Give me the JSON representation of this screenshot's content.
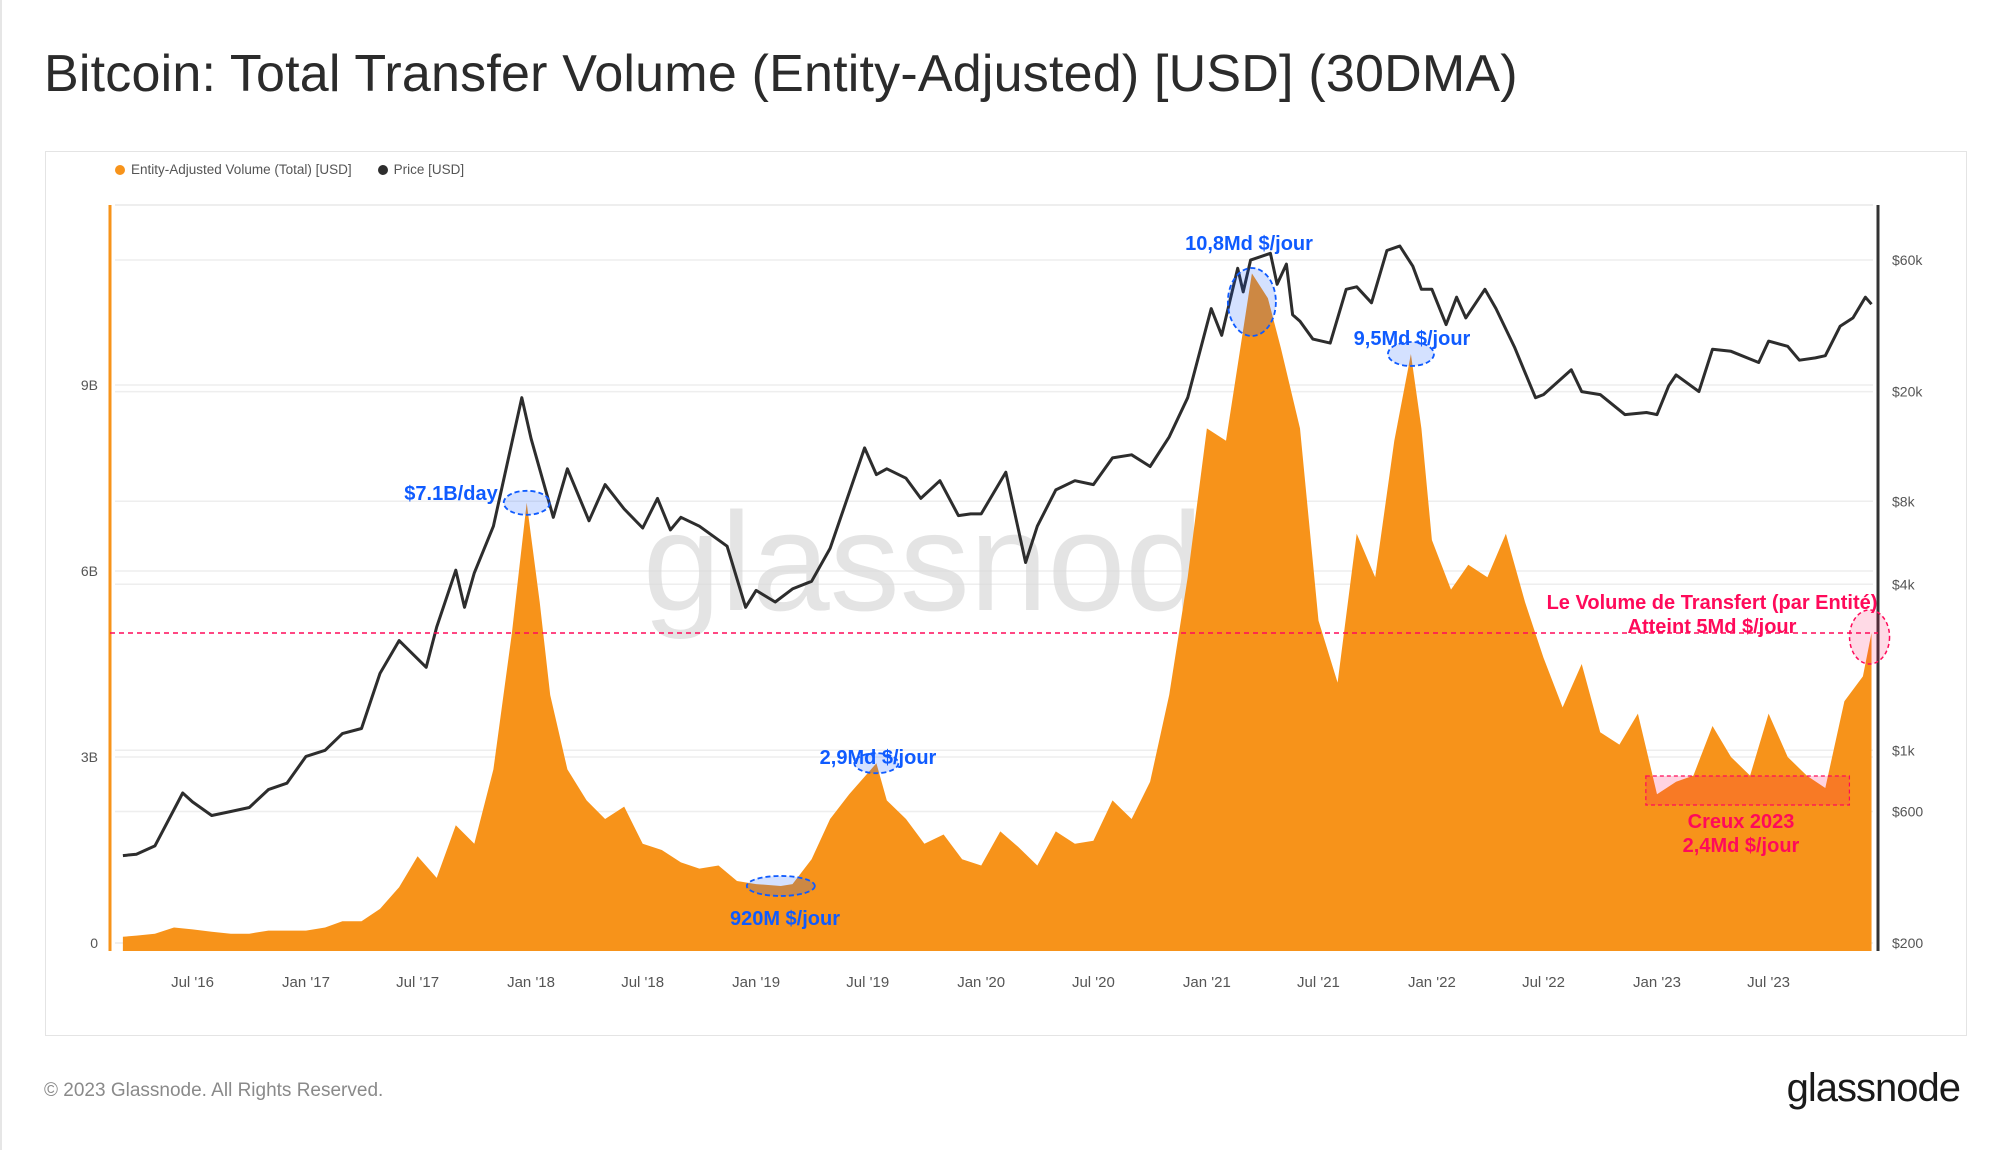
{
  "title": "Bitcoin: Total Transfer Volume (Entity-Adjusted) [USD] (30DMA)",
  "footer": "© 2023 Glassnode. All Rights Reserved.",
  "logo": "glassnode",
  "watermark": "glassnode",
  "colors": {
    "volume": "#f7931a",
    "price": "#2d2d2d",
    "annotation_blue": "#0f5bff",
    "annotation_pink": "#ff0a5a"
  },
  "chart_data": {
    "type": "area",
    "title": "Bitcoin: Total Transfer Volume (Entity-Adjusted) [USD] (30DMA)",
    "legend": {
      "placement": "top-left",
      "entries": [
        "Entity-Adjusted Volume (Total) [USD]",
        "Price [USD]"
      ]
    },
    "grid": true,
    "x_ticks": [
      "Jul '16",
      "Jan '17",
      "Jul '17",
      "Jan '18",
      "Jul '18",
      "Jan '19",
      "Jul '19",
      "Jan '20",
      "Jul '20",
      "Jan '21",
      "Jul '21",
      "Jan '22",
      "Jul '22",
      "Jan '23",
      "Jul '23"
    ],
    "x_tick_dates": [
      "2016-07-01",
      "2017-01-01",
      "2017-07-01",
      "2018-01-01",
      "2018-07-01",
      "2019-01-01",
      "2019-07-01",
      "2020-01-01",
      "2020-07-01",
      "2021-01-01",
      "2021-07-01",
      "2022-01-01",
      "2022-07-01",
      "2023-01-01",
      "2023-07-01"
    ],
    "y_left": {
      "scale": "linear",
      "unit": "USD",
      "ticks": [
        "0",
        "3B",
        "6B",
        "9B"
      ],
      "tick_values": [
        0,
        3,
        6,
        9
      ],
      "range": [
        0,
        11.5
      ]
    },
    "y_right": {
      "scale": "log",
      "unit": "USD",
      "ticks": [
        "$200",
        "$600",
        "$1k",
        "$4k",
        "$8k",
        "$20k",
        "$60k"
      ],
      "tick_values": [
        200,
        600,
        1000,
        4000,
        8000,
        20000,
        60000
      ]
    },
    "series": [
      {
        "name": "Entity-Adjusted Volume (Total) [USD]",
        "type": "area",
        "axis": "left",
        "unit": "billion USD",
        "points": [
          [
            "2016-03-10",
            0.1
          ],
          [
            "2016-04-01",
            0.12
          ],
          [
            "2016-05-01",
            0.15
          ],
          [
            "2016-06-01",
            0.25
          ],
          [
            "2016-07-01",
            0.22
          ],
          [
            "2016-08-01",
            0.18
          ],
          [
            "2016-09-01",
            0.15
          ],
          [
            "2016-10-01",
            0.15
          ],
          [
            "2016-11-01",
            0.2
          ],
          [
            "2016-12-01",
            0.2
          ],
          [
            "2017-01-01",
            0.2
          ],
          [
            "2017-02-01",
            0.25
          ],
          [
            "2017-03-01",
            0.35
          ],
          [
            "2017-04-01",
            0.35
          ],
          [
            "2017-05-01",
            0.55
          ],
          [
            "2017-06-01",
            0.9
          ],
          [
            "2017-07-01",
            1.4
          ],
          [
            "2017-08-01",
            1.05
          ],
          [
            "2017-09-01",
            1.9
          ],
          [
            "2017-10-01",
            1.6
          ],
          [
            "2017-11-01",
            2.8
          ],
          [
            "2017-12-01",
            5.0
          ],
          [
            "2017-12-25",
            7.1
          ],
          [
            "2018-01-15",
            5.5
          ],
          [
            "2018-02-01",
            4.0
          ],
          [
            "2018-03-01",
            2.8
          ],
          [
            "2018-04-01",
            2.3
          ],
          [
            "2018-05-01",
            2.0
          ],
          [
            "2018-06-01",
            2.2
          ],
          [
            "2018-07-01",
            1.6
          ],
          [
            "2018-08-01",
            1.5
          ],
          [
            "2018-09-01",
            1.3
          ],
          [
            "2018-10-01",
            1.2
          ],
          [
            "2018-11-01",
            1.25
          ],
          [
            "2018-12-01",
            1.0
          ],
          [
            "2019-01-01",
            0.95
          ],
          [
            "2019-02-10",
            0.92
          ],
          [
            "2019-03-01",
            0.95
          ],
          [
            "2019-04-01",
            1.35
          ],
          [
            "2019-05-01",
            2.0
          ],
          [
            "2019-06-01",
            2.4
          ],
          [
            "2019-07-15",
            2.9
          ],
          [
            "2019-08-01",
            2.3
          ],
          [
            "2019-09-01",
            2.0
          ],
          [
            "2019-10-01",
            1.6
          ],
          [
            "2019-11-01",
            1.75
          ],
          [
            "2019-12-01",
            1.35
          ],
          [
            "2020-01-01",
            1.25
          ],
          [
            "2020-02-01",
            1.8
          ],
          [
            "2020-03-01",
            1.55
          ],
          [
            "2020-04-01",
            1.25
          ],
          [
            "2020-05-01",
            1.8
          ],
          [
            "2020-06-01",
            1.6
          ],
          [
            "2020-07-01",
            1.65
          ],
          [
            "2020-08-01",
            2.3
          ],
          [
            "2020-09-01",
            2.0
          ],
          [
            "2020-10-01",
            2.6
          ],
          [
            "2020-11-01",
            4.0
          ],
          [
            "2020-12-01",
            5.9
          ],
          [
            "2021-01-01",
            8.3
          ],
          [
            "2021-02-01",
            8.1
          ],
          [
            "2021-03-15",
            10.8
          ],
          [
            "2021-04-10",
            10.4
          ],
          [
            "2021-05-01",
            9.6
          ],
          [
            "2021-06-01",
            8.3
          ],
          [
            "2021-07-01",
            5.2
          ],
          [
            "2021-08-01",
            4.2
          ],
          [
            "2021-09-01",
            6.6
          ],
          [
            "2021-10-01",
            5.9
          ],
          [
            "2021-11-01",
            8.1
          ],
          [
            "2021-11-28",
            9.5
          ],
          [
            "2021-12-15",
            8.3
          ],
          [
            "2022-01-01",
            6.5
          ],
          [
            "2022-02-01",
            5.7
          ],
          [
            "2022-03-01",
            6.1
          ],
          [
            "2022-04-01",
            5.9
          ],
          [
            "2022-05-01",
            6.6
          ],
          [
            "2022-06-01",
            5.5
          ],
          [
            "2022-07-01",
            4.6
          ],
          [
            "2022-08-01",
            3.8
          ],
          [
            "2022-09-01",
            4.5
          ],
          [
            "2022-10-01",
            3.4
          ],
          [
            "2022-11-01",
            3.2
          ],
          [
            "2022-12-01",
            3.7
          ],
          [
            "2023-01-01",
            2.4
          ],
          [
            "2023-02-01",
            2.6
          ],
          [
            "2023-03-01",
            2.7
          ],
          [
            "2023-04-01",
            3.5
          ],
          [
            "2023-05-01",
            3.0
          ],
          [
            "2023-06-01",
            2.7
          ],
          [
            "2023-07-01",
            3.7
          ],
          [
            "2023-08-01",
            3.0
          ],
          [
            "2023-09-01",
            2.7
          ],
          [
            "2023-10-01",
            2.5
          ],
          [
            "2023-11-01",
            3.9
          ],
          [
            "2023-12-01",
            4.3
          ],
          [
            "2023-12-15",
            5.0
          ]
        ]
      },
      {
        "name": "Price [USD]",
        "type": "line",
        "axis": "right",
        "unit": "USD",
        "points": [
          [
            "2016-03-10",
            415
          ],
          [
            "2016-04-01",
            420
          ],
          [
            "2016-05-01",
            450
          ],
          [
            "2016-06-15",
            700
          ],
          [
            "2016-07-01",
            650
          ],
          [
            "2016-08-01",
            580
          ],
          [
            "2016-09-01",
            600
          ],
          [
            "2016-10-01",
            620
          ],
          [
            "2016-11-01",
            720
          ],
          [
            "2016-12-01",
            760
          ],
          [
            "2017-01-01",
            950
          ],
          [
            "2017-02-01",
            1000
          ],
          [
            "2017-03-01",
            1150
          ],
          [
            "2017-04-01",
            1200
          ],
          [
            "2017-05-01",
            1900
          ],
          [
            "2017-06-01",
            2500
          ],
          [
            "2017-07-15",
            2000
          ],
          [
            "2017-08-01",
            2800
          ],
          [
            "2017-09-01",
            4500
          ],
          [
            "2017-09-15",
            3300
          ],
          [
            "2017-10-01",
            4400
          ],
          [
            "2017-11-01",
            6500
          ],
          [
            "2017-12-17",
            19000
          ],
          [
            "2018-01-01",
            13500
          ],
          [
            "2018-02-06",
            7000
          ],
          [
            "2018-03-01",
            10500
          ],
          [
            "2018-04-05",
            6800
          ],
          [
            "2018-05-01",
            9200
          ],
          [
            "2018-06-01",
            7500
          ],
          [
            "2018-07-01",
            6400
          ],
          [
            "2018-07-25",
            8200
          ],
          [
            "2018-08-15",
            6300
          ],
          [
            "2018-09-01",
            7000
          ],
          [
            "2018-10-01",
            6500
          ],
          [
            "2018-11-15",
            5500
          ],
          [
            "2018-12-15",
            3300
          ],
          [
            "2019-01-01",
            3800
          ],
          [
            "2019-02-01",
            3450
          ],
          [
            "2019-03-01",
            3850
          ],
          [
            "2019-04-01",
            4100
          ],
          [
            "2019-05-01",
            5400
          ],
          [
            "2019-06-26",
            12500
          ],
          [
            "2019-07-15",
            10000
          ],
          [
            "2019-08-01",
            10500
          ],
          [
            "2019-09-01",
            9700
          ],
          [
            "2019-09-25",
            8200
          ],
          [
            "2019-10-26",
            9500
          ],
          [
            "2019-11-25",
            7100
          ],
          [
            "2019-12-15",
            7200
          ],
          [
            "2020-01-01",
            7200
          ],
          [
            "2020-02-10",
            10200
          ],
          [
            "2020-03-13",
            4800
          ],
          [
            "2020-04-01",
            6500
          ],
          [
            "2020-05-01",
            8800
          ],
          [
            "2020-06-01",
            9500
          ],
          [
            "2020-07-01",
            9200
          ],
          [
            "2020-08-01",
            11500
          ],
          [
            "2020-09-01",
            11800
          ],
          [
            "2020-10-01",
            10700
          ],
          [
            "2020-11-01",
            13700
          ],
          [
            "2020-12-01",
            19000
          ],
          [
            "2021-01-08",
            40000
          ],
          [
            "2021-01-25",
            32000
          ],
          [
            "2021-02-20",
            56000
          ],
          [
            "2021-03-01",
            46000
          ],
          [
            "2021-03-13",
            60000
          ],
          [
            "2021-04-14",
            63500
          ],
          [
            "2021-04-25",
            49000
          ],
          [
            "2021-05-10",
            58000
          ],
          [
            "2021-05-20",
            38000
          ],
          [
            "2021-06-01",
            36000
          ],
          [
            "2021-06-22",
            31000
          ],
          [
            "2021-07-20",
            30000
          ],
          [
            "2021-08-15",
            47000
          ],
          [
            "2021-09-01",
            48000
          ],
          [
            "2021-09-25",
            42000
          ],
          [
            "2021-10-20",
            65000
          ],
          [
            "2021-11-10",
            67500
          ],
          [
            "2021-12-01",
            57000
          ],
          [
            "2021-12-15",
            47000
          ],
          [
            "2022-01-01",
            47000
          ],
          [
            "2022-01-24",
            35000
          ],
          [
            "2022-02-10",
            44000
          ],
          [
            "2022-02-25",
            37000
          ],
          [
            "2022-03-28",
            47000
          ],
          [
            "2022-04-15",
            40000
          ],
          [
            "2022-05-15",
            29000
          ],
          [
            "2022-06-18",
            19000
          ],
          [
            "2022-07-01",
            19500
          ],
          [
            "2022-08-15",
            24000
          ],
          [
            "2022-09-01",
            20000
          ],
          [
            "2022-10-01",
            19500
          ],
          [
            "2022-11-10",
            16500
          ],
          [
            "2022-12-15",
            16800
          ],
          [
            "2023-01-01",
            16500
          ],
          [
            "2023-01-20",
            21000
          ],
          [
            "2023-02-01",
            23000
          ],
          [
            "2023-03-10",
            20000
          ],
          [
            "2023-04-01",
            28500
          ],
          [
            "2023-05-01",
            28000
          ],
          [
            "2023-06-15",
            25500
          ],
          [
            "2023-07-01",
            30500
          ],
          [
            "2023-08-01",
            29200
          ],
          [
            "2023-08-20",
            26000
          ],
          [
            "2023-09-15",
            26500
          ],
          [
            "2023-10-01",
            27000
          ],
          [
            "2023-10-25",
            34500
          ],
          [
            "2023-11-15",
            37000
          ],
          [
            "2023-12-05",
            44000
          ],
          [
            "2023-12-15",
            41500
          ]
        ]
      }
    ],
    "reference_line": {
      "value": 5.0,
      "axis": "left",
      "style": "dashed"
    },
    "annotations": [
      {
        "id": "peak-2017",
        "text": "$7.1B/day",
        "date": "2017-12-25",
        "value": 7.1,
        "color": "blue"
      },
      {
        "id": "low-2019",
        "text": "920M $/jour",
        "date": "2019-02-10",
        "value": 0.92,
        "color": "blue"
      },
      {
        "id": "peak-2019",
        "text": "2,9Md $/jour",
        "date": "2019-07-15",
        "value": 2.9,
        "color": "blue"
      },
      {
        "id": "peak-2021a",
        "text": "10,8Md $/jour",
        "date": "2021-03-15",
        "value": 10.8,
        "color": "blue"
      },
      {
        "id": "peak-2021b",
        "text": "9,5Md $/jour",
        "date": "2021-11-28",
        "value": 9.5,
        "color": "blue"
      },
      {
        "id": "current",
        "text": "Le Volume de Transfert (par Entité)",
        "text2": "Atteint 5Md $/jour",
        "date": "2023-12-15",
        "value": 5.0,
        "color": "pink"
      },
      {
        "id": "trough-2023",
        "text": "Creux 2023",
        "text2": "2,4Md $/jour",
        "date_range": [
          "2022-12-01",
          "2023-11-01"
        ],
        "value_range": [
          2.4,
          2.9
        ],
        "color": "pink"
      }
    ]
  }
}
